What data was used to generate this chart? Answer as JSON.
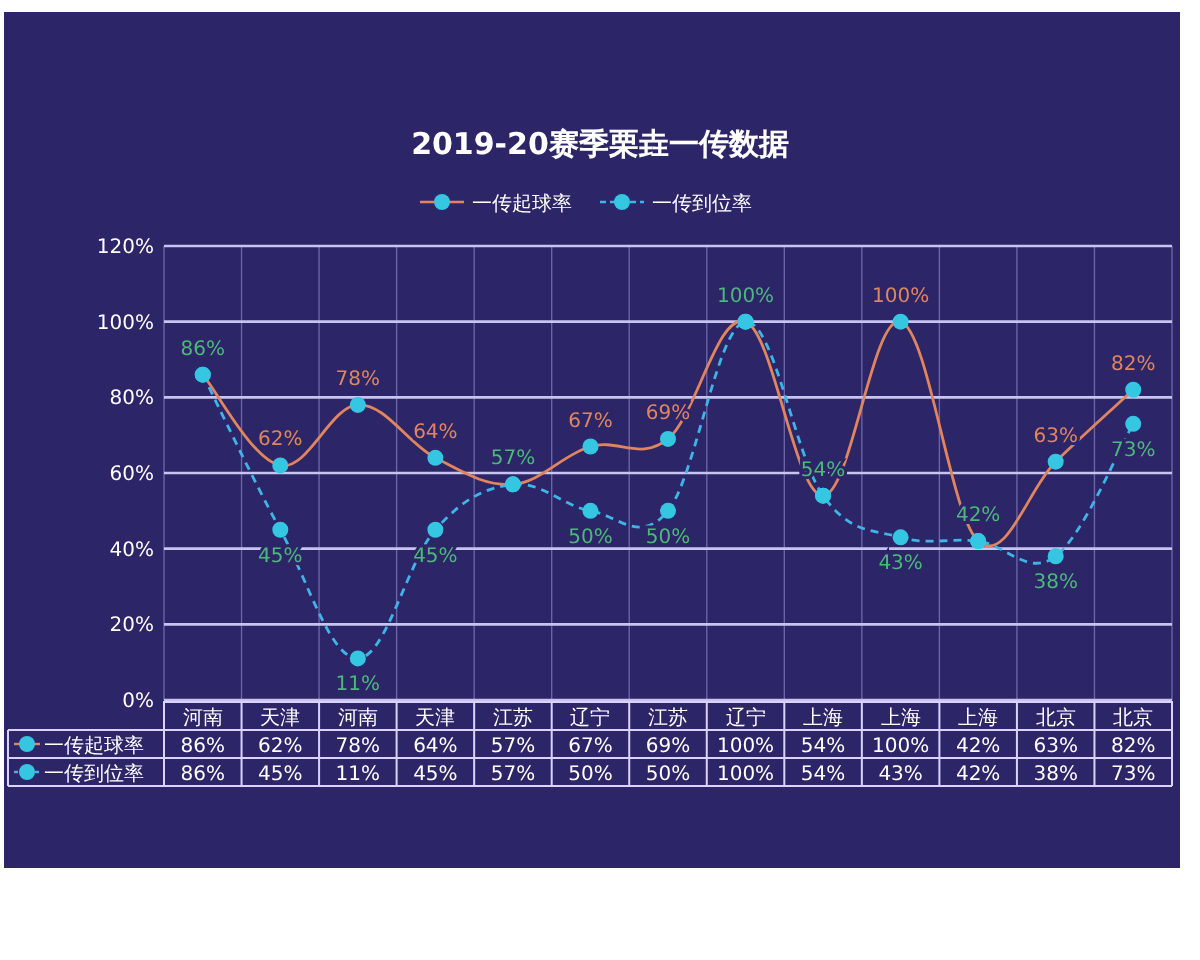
{
  "chart_data": {
    "type": "line",
    "title": "2019-20赛季栗垚一传数据",
    "categories": [
      "河南",
      "天津",
      "河南",
      "天津",
      "江苏",
      "辽宁",
      "江苏",
      "辽宁",
      "上海",
      "上海",
      "上海",
      "北京",
      "北京"
    ],
    "series": [
      {
        "name": "一传起球率",
        "color": "#e0855e",
        "line_style": "solid",
        "values": [
          86,
          62,
          78,
          64,
          57,
          67,
          69,
          100,
          54,
          100,
          42,
          63,
          82
        ],
        "value_labels": [
          "86%",
          "62%",
          "78%",
          "64%",
          "57%",
          "67%",
          "69%",
          "100%",
          "54%",
          "100%",
          "42%",
          "63%",
          "82%"
        ]
      },
      {
        "name": "一传到位率",
        "color": "#3fb4e6",
        "line_style": "dashed",
        "values": [
          86,
          45,
          11,
          45,
          57,
          50,
          50,
          100,
          54,
          43,
          42,
          38,
          73
        ],
        "value_labels": [
          "86%",
          "45%",
          "11%",
          "45%",
          "57%",
          "50%",
          "50%",
          "100%",
          "54%",
          "43%",
          "42%",
          "38%",
          "73%"
        ]
      }
    ],
    "ylim": [
      0,
      120
    ],
    "yticks": [
      {
        "value": 0,
        "label": "0%"
      },
      {
        "value": 20,
        "label": "20%"
      },
      {
        "value": 40,
        "label": "40%"
      },
      {
        "value": 60,
        "label": "60%"
      },
      {
        "value": 80,
        "label": "80%"
      },
      {
        "value": 100,
        "label": "100%"
      },
      {
        "value": 120,
        "label": "120%"
      }
    ],
    "grid": true,
    "legend": "top",
    "marker": "circle"
  }
}
